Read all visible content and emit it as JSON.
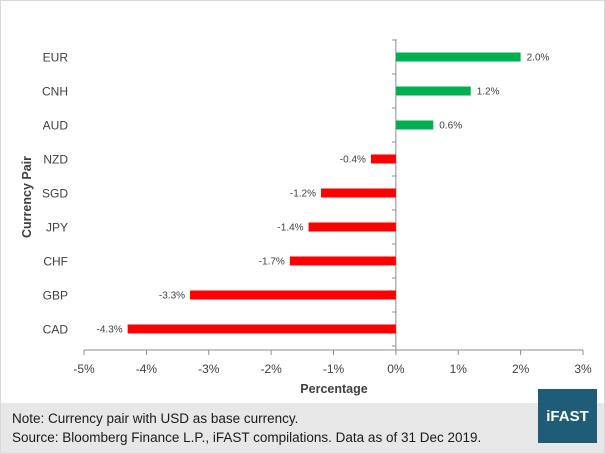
{
  "chart_data": {
    "type": "bar",
    "orientation": "horizontal",
    "categories": [
      "EUR",
      "CNH",
      "AUD",
      "NZD",
      "SGD",
      "JPY",
      "CHF",
      "GBP",
      "CAD"
    ],
    "values": [
      2.0,
      1.2,
      0.6,
      -0.4,
      -1.2,
      -1.4,
      -1.7,
      -3.3,
      -4.3
    ],
    "data_labels": [
      "2.0%",
      "1.2%",
      "0.6%",
      "-0.4%",
      "-1.2%",
      "-1.4%",
      "-1.7%",
      "-3.3%",
      "-4.3%"
    ],
    "xlabel": "Percentage",
    "ylabel": "Currency Pair",
    "xlim": [
      -5,
      3
    ],
    "xticks": [
      -5,
      -4,
      -3,
      -2,
      -1,
      0,
      1,
      2,
      3
    ],
    "xtick_labels": [
      "-5%",
      "-4%",
      "-3%",
      "-2%",
      "-1%",
      "0%",
      "1%",
      "2%",
      "3%"
    ],
    "colors": {
      "positive": "#00b050",
      "negative": "#ff0000"
    },
    "grid": false,
    "legend": "none"
  },
  "footer": {
    "note": "Note: Currency pair with USD as base currency.",
    "source": "Source: Bloomberg Finance L.P., iFAST compilations. Data as of 31 Dec 2019."
  },
  "brand": {
    "logo_text": "iFAST",
    "color": "#1f5c78"
  }
}
